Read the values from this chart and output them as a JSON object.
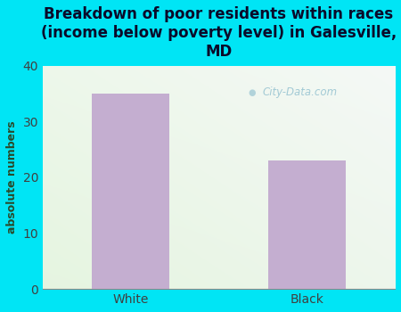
{
  "title": "Breakdown of poor residents within races\n(income below poverty level) in Galesville,\nMD",
  "categories": [
    "White",
    "Black"
  ],
  "values": [
    35,
    23
  ],
  "bar_color": "#c4aed0",
  "ylabel": "absolute numbers",
  "ylim": [
    0,
    40
  ],
  "yticks": [
    0,
    10,
    20,
    30,
    40
  ],
  "background_outer": "#00e5f5",
  "background_inner_topleft": "#e8f0e0",
  "background_inner_topright": "#f0f0f0",
  "background_inner_bottom": "#e8f0e0",
  "title_color": "#0a0a2a",
  "tick_label_color": "#404040",
  "axis_label_color": "#2a4a2a",
  "watermark_text": "City-Data.com",
  "title_fontsize": 12,
  "ylabel_fontsize": 9,
  "tick_fontsize": 10
}
